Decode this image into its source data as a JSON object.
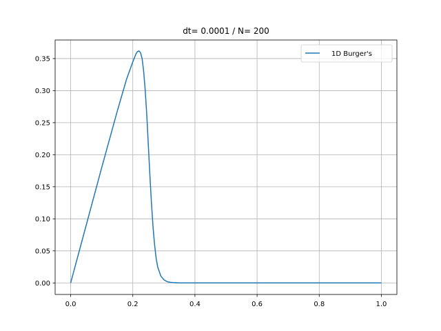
{
  "chart_data": {
    "type": "line",
    "title": "dt= 0.0001 / N= 200",
    "xlabel": "",
    "ylabel": "",
    "xlim": [
      -0.05,
      1.05
    ],
    "ylim": [
      -0.018,
      0.379
    ],
    "xticks": [
      0.0,
      0.2,
      0.4,
      0.6,
      0.8,
      1.0
    ],
    "xtick_labels": [
      "0.0",
      "0.2",
      "0.4",
      "0.6",
      "0.8",
      "1.0"
    ],
    "yticks": [
      0.0,
      0.05,
      0.1,
      0.15,
      0.2,
      0.25,
      0.3,
      0.35
    ],
    "ytick_labels": [
      "0.00",
      "0.05",
      "0.10",
      "0.15",
      "0.20",
      "0.25",
      "0.30",
      "0.35"
    ],
    "grid": true,
    "legend_position": "upper right",
    "series": [
      {
        "name": "1D Burger's",
        "color": "#1f77b4",
        "x": [
          0.0,
          0.05,
          0.1,
          0.15,
          0.18,
          0.2,
          0.21,
          0.215,
          0.22,
          0.225,
          0.23,
          0.235,
          0.24,
          0.245,
          0.25,
          0.255,
          0.26,
          0.265,
          0.27,
          0.275,
          0.28,
          0.29,
          0.3,
          0.31,
          0.32,
          0.33,
          0.35,
          0.4,
          0.5,
          0.6,
          0.7,
          0.8,
          0.9,
          1.0
        ],
        "y": [
          0.0,
          0.09,
          0.18,
          0.268,
          0.318,
          0.345,
          0.357,
          0.361,
          0.362,
          0.359,
          0.35,
          0.33,
          0.3,
          0.262,
          0.215,
          0.168,
          0.125,
          0.088,
          0.06,
          0.039,
          0.025,
          0.011,
          0.005,
          0.002,
          0.001,
          0.0005,
          0.0,
          0.0,
          0.0,
          0.0,
          0.0,
          0.0,
          0.0,
          0.0
        ]
      }
    ]
  }
}
